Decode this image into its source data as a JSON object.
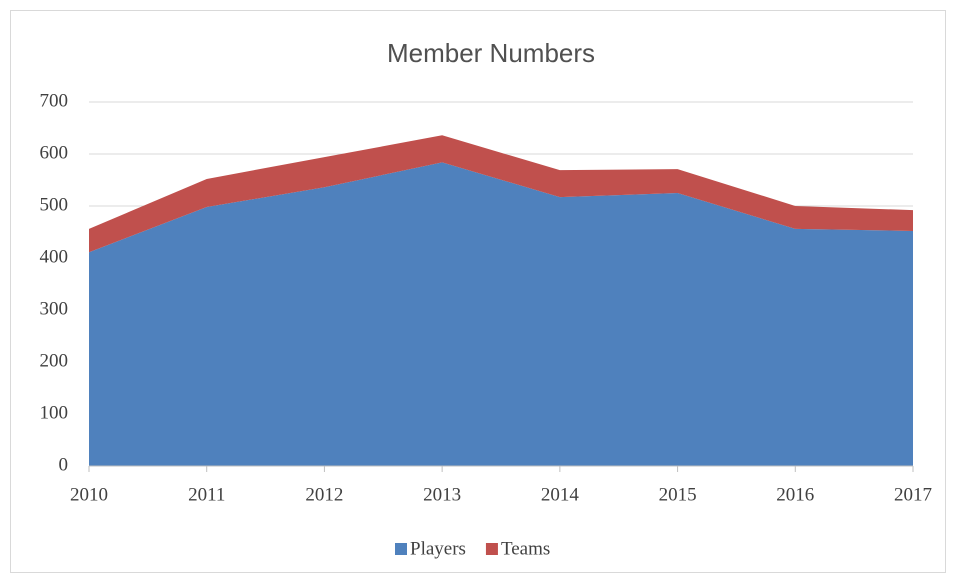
{
  "chart_data": {
    "type": "stacked_area",
    "title": "Member Numbers",
    "categories": [
      "2010",
      "2011",
      "2012",
      "2013",
      "2014",
      "2015",
      "2016",
      "2017"
    ],
    "series": [
      {
        "name": "Players",
        "color": "#4f81bd",
        "values": [
          411,
          498,
          536,
          584,
          517,
          525,
          456,
          452
        ]
      },
      {
        "name": "Teams",
        "color": "#c0504d",
        "values": [
          45,
          54,
          58,
          52,
          52,
          46,
          44,
          40
        ]
      }
    ],
    "ylim": [
      0,
      700
    ],
    "yticks": [
      0,
      100,
      200,
      300,
      400,
      500,
      600,
      700
    ],
    "grid": true,
    "legend": "bottom"
  }
}
